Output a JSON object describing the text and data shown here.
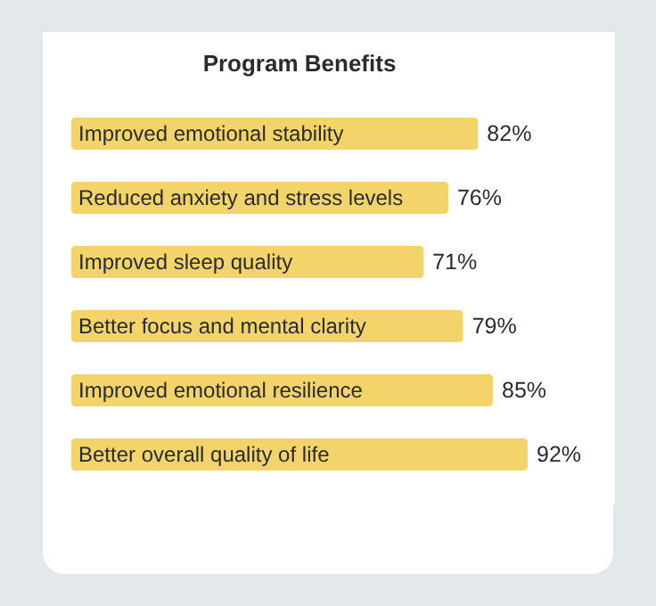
{
  "chart_data": {
    "type": "bar",
    "title": "Program Benefits",
    "orientation": "horizontal",
    "categories": [
      "Improved emotional stability",
      "Reduced anxiety and stress levels",
      "Improved sleep quality",
      "Better focus and mental clarity",
      "Improved emotional resilience",
      "Better overall quality of life"
    ],
    "values": [
      82,
      76,
      71,
      79,
      85,
      92
    ],
    "color": "#f2d46a",
    "value_labels": [
      "82%",
      "76%",
      "71%",
      "79%",
      "85%",
      "92%"
    ],
    "tick_labels": false
  }
}
